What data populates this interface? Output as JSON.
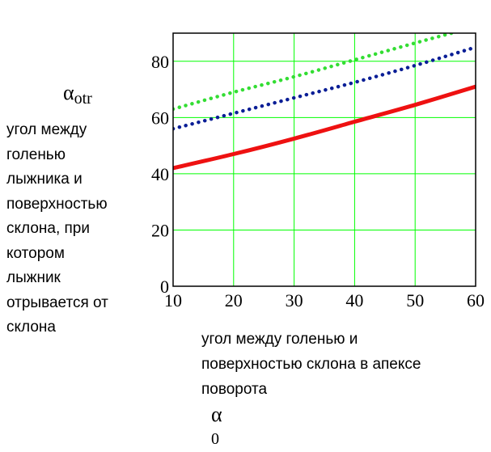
{
  "chart_data": {
    "type": "line",
    "xlabel": {
      "lines": [
        "угол между голенью и",
        "поверхностью склона в апексе",
        "поворота"
      ],
      "symbol": "α",
      "symbol_sub": "0"
    },
    "ylabel": {
      "symbol": "α",
      "symbol_sub": "otr",
      "lines": [
        "угол между",
        "голенью",
        "лыжника и",
        "поверхностью",
        "склона, при",
        "котором",
        "лыжник",
        "отрывается от",
        "склона"
      ]
    },
    "xlim": [
      10,
      60
    ],
    "ylim": [
      0,
      90
    ],
    "xticks": [
      10,
      20,
      30,
      40,
      50,
      60
    ],
    "yticks": [
      0,
      20,
      40,
      60,
      80
    ],
    "grid": true,
    "grid_color": "#00ff00",
    "series": [
      {
        "color": "#ee1111",
        "style": "solid",
        "x": [
          10,
          20,
          30,
          40,
          50,
          60
        ],
        "y": [
          42,
          47,
          52.5,
          58.5,
          64.5,
          71
        ]
      },
      {
        "color": "#0a1e96",
        "style": "dotted",
        "x": [
          10,
          20,
          30,
          40,
          50,
          60
        ],
        "y": [
          56,
          61.5,
          67,
          72.5,
          78.5,
          85
        ]
      },
      {
        "color": "#33dd33",
        "style": "dotted",
        "x": [
          10,
          20,
          30,
          40,
          50,
          56
        ],
        "y": [
          63,
          69,
          74.5,
          80.5,
          86.5,
          90
        ]
      }
    ]
  }
}
